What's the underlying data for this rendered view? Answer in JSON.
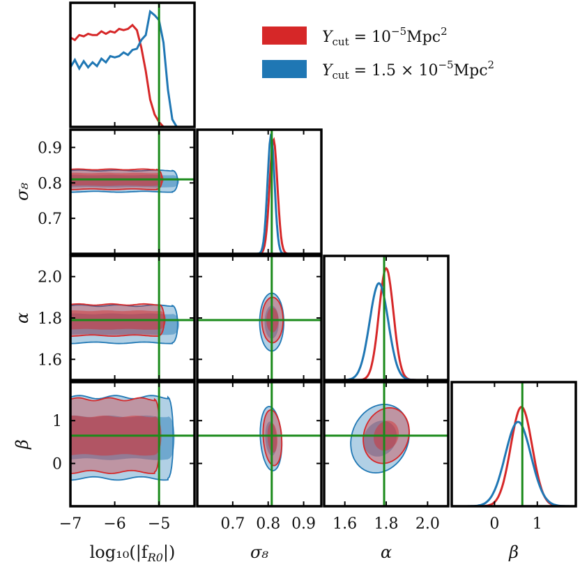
{
  "chart_data": {
    "type": "corner",
    "parameters": [
      {
        "key": "logfR0",
        "label": "log10(|f_R0|)",
        "label_display": "log₁₀(|f",
        "label_sub": "R0",
        "label_tail": "|)",
        "range": [
          -7,
          -4.2
        ],
        "ticks": [
          -7,
          -6,
          -5
        ],
        "tick_labels": [
          "−7",
          "−6",
          "−5"
        ],
        "truth": -5.0
      },
      {
        "key": "sigma8",
        "label": "σ₈",
        "range": [
          0.6,
          0.95
        ],
        "ticks": [
          0.7,
          0.8,
          0.9
        ],
        "tick_labels": [
          "0.7",
          "0.8",
          "0.9"
        ],
        "truth": 0.81
      },
      {
        "key": "alpha",
        "label": "α",
        "range": [
          1.5,
          2.1
        ],
        "ticks": [
          1.6,
          1.8,
          2.0
        ],
        "tick_labels": [
          "1.6",
          "1.8",
          "2.0"
        ],
        "truth": 1.79
      },
      {
        "key": "beta",
        "label": "β",
        "range": [
          -1.0,
          1.9
        ],
        "ticks": [
          0,
          1
        ],
        "tick_labels": [
          "0",
          "1"
        ],
        "truth": 0.65
      }
    ],
    "series": [
      {
        "name": "Y_cut = 10^-5 Mpc^2",
        "legend_label": "Y",
        "legend_sub": "cut",
        "legend_rest": " = 10",
        "legend_sup": "−5",
        "legend_unit": "Mpc",
        "legend_unit_sup": "2",
        "color": "#d62728",
        "marginals": {
          "logfR0": {
            "x": [
              -7.0,
              -6.9,
              -6.8,
              -6.7,
              -6.6,
              -6.5,
              -6.4,
              -6.3,
              -6.2,
              -6.1,
              -6.0,
              -5.9,
              -5.8,
              -5.7,
              -5.6,
              -5.5,
              -5.4,
              -5.3,
              -5.2,
              -5.1,
              -5.0,
              -4.9,
              -4.8
            ],
            "y": [
              0.72,
              0.7,
              0.74,
              0.73,
              0.75,
              0.74,
              0.74,
              0.77,
              0.75,
              0.77,
              0.76,
              0.79,
              0.78,
              0.79,
              0.82,
              0.78,
              0.64,
              0.45,
              0.22,
              0.1,
              0.04,
              0.0,
              0.0
            ]
          },
          "sigma8": {
            "mean": 0.815,
            "sd": 0.011,
            "peak": 0.92
          },
          "alpha": {
            "mean": 1.8,
            "sd": 0.035,
            "peak": 0.9
          },
          "beta": {
            "mean": 0.63,
            "sd": 0.25,
            "peak": 0.8
          }
        }
      },
      {
        "name": "Y_cut = 1.5 × 10^-5 Mpc^2",
        "legend_label": "Y",
        "legend_sub": "cut",
        "legend_rest": " = 1.5 × 10",
        "legend_sup": "−5",
        "legend_unit": "Mpc",
        "legend_unit_sup": "2",
        "color": "#1f77b4",
        "marginals": {
          "logfR0": {
            "x": [
              -7.0,
              -6.9,
              -6.8,
              -6.7,
              -6.6,
              -6.5,
              -6.4,
              -6.3,
              -6.2,
              -6.1,
              -6.0,
              -5.9,
              -5.8,
              -5.7,
              -5.6,
              -5.5,
              -5.4,
              -5.3,
              -5.2,
              -5.1,
              -5.0,
              -4.9,
              -4.8,
              -4.7,
              -4.6
            ],
            "y": [
              0.48,
              0.54,
              0.47,
              0.53,
              0.48,
              0.52,
              0.49,
              0.55,
              0.52,
              0.57,
              0.56,
              0.57,
              0.6,
              0.58,
              0.62,
              0.63,
              0.7,
              0.74,
              0.93,
              0.9,
              0.86,
              0.68,
              0.3,
              0.06,
              0.0
            ]
          },
          "sigma8": {
            "mean": 0.808,
            "sd": 0.01,
            "peak": 0.95
          },
          "alpha": {
            "mean": 1.765,
            "sd": 0.045,
            "peak": 0.78
          },
          "beta": {
            "mean": 0.55,
            "sd": 0.3,
            "peak": 0.68
          }
        }
      }
    ],
    "contours": [
      {
        "pair": [
          "logfR0",
          "sigma8"
        ],
        "red": {
          "x": [
            -7.0,
            -5.05
          ],
          "c": 0.81,
          "h": [
            0.028,
            0.018
          ]
        },
        "blue": {
          "x": [
            -7.0,
            -4.7
          ],
          "c": 0.805,
          "h": [
            0.03,
            0.017
          ]
        }
      },
      {
        "pair": [
          "logfR0",
          "alpha"
        ],
        "red": {
          "x": [
            -7.0,
            -5.0
          ],
          "c": 1.79,
          "h": [
            0.075,
            0.045
          ]
        },
        "blue": {
          "x": [
            -7.0,
            -4.7
          ],
          "c": 1.77,
          "h": [
            0.09,
            0.05
          ]
        }
      },
      {
        "pair": [
          "logfR0",
          "beta"
        ],
        "red": {
          "x": [
            -7.0,
            -5.1
          ],
          "c": 0.65,
          "h": [
            0.85,
            0.45
          ]
        },
        "blue": {
          "x": [
            -7.0,
            -4.8
          ],
          "c": 0.6,
          "h": [
            0.95,
            0.5
          ]
        }
      },
      {
        "pair": [
          "sigma8",
          "alpha"
        ],
        "red": {
          "cx": 0.812,
          "cy": 1.79,
          "rx": [
            0.03,
            0.017
          ],
          "ry": [
            0.11,
            0.06
          ]
        },
        "blue": {
          "cx": 0.81,
          "cy": 1.78,
          "rx": [
            0.034,
            0.02
          ],
          "ry": [
            0.14,
            0.08
          ]
        }
      },
      {
        "pair": [
          "sigma8",
          "beta"
        ],
        "red": {
          "cx": 0.812,
          "cy": 0.6,
          "rx": [
            0.026,
            0.014
          ],
          "ry": [
            0.65,
            0.35
          ],
          "tilt": -0.35
        },
        "blue": {
          "cx": 0.808,
          "cy": 0.58,
          "rx": [
            0.03,
            0.016
          ],
          "ry": [
            0.75,
            0.4
          ],
          "tilt": -0.35
        }
      },
      {
        "pair": [
          "alpha",
          "beta"
        ],
        "red": {
          "cx": 1.8,
          "cy": 0.65,
          "rx": [
            0.11,
            0.06
          ],
          "ry": [
            0.65,
            0.35
          ],
          "tilt": 0.3
        },
        "blue": {
          "cx": 1.77,
          "cy": 0.58,
          "rx": [
            0.14,
            0.08
          ],
          "ry": [
            0.8,
            0.42
          ],
          "tilt": 0.3
        }
      }
    ],
    "truth_color": "#1a8a1a",
    "legend_position": "top-right"
  }
}
